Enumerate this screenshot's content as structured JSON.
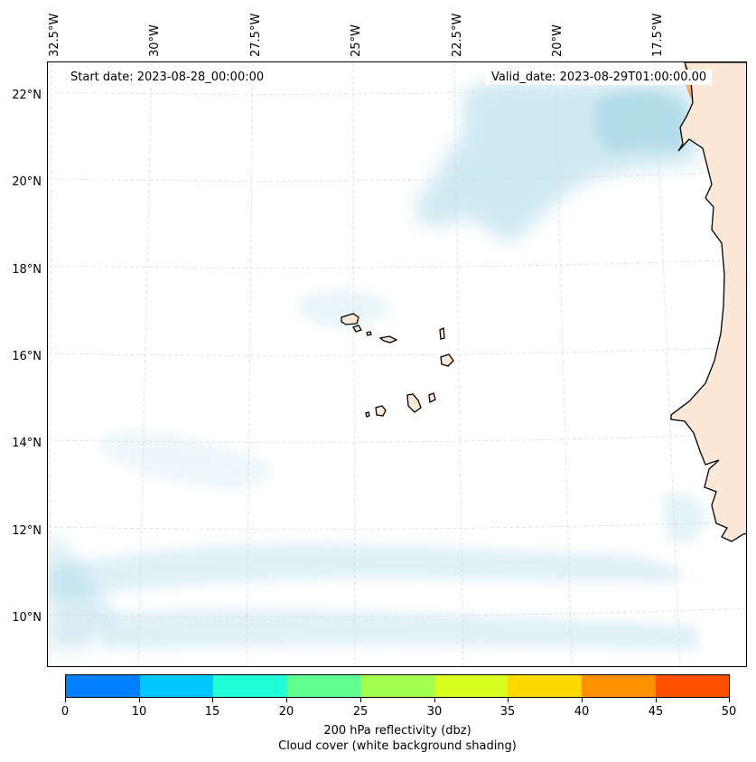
{
  "map": {
    "start_date": "Start date: 2023-08-28_00:00:00",
    "valid_date": "Valid_date: 2023-08-29T01:00:00.00",
    "lon_labels": [
      "32.5°W",
      "30°W",
      "27.5°W",
      "25°W",
      "22.5°W",
      "20°W",
      "17.5°W"
    ],
    "lat_labels": [
      "22°N",
      "20°N",
      "18°N",
      "16°N",
      "14°N",
      "12°N",
      "10°N"
    ],
    "colors": {
      "cloud": "#a8d8e6",
      "reflectivity_high": "#f5a66a",
      "reflectivity_low": "#fde4d0",
      "land_fill": "#fde8d8",
      "coast": "#000000",
      "grid": "#d6d6d6"
    }
  },
  "colorbar": {
    "ticks": [
      "0",
      "10",
      "15",
      "20",
      "25",
      "30",
      "35",
      "40",
      "45",
      "50"
    ],
    "colors": [
      "#0080ff",
      "#00c8ff",
      "#20ffd8",
      "#60ff90",
      "#a0ff50",
      "#d8ff20",
      "#ffd800",
      "#ff9000",
      "#ff5000"
    ],
    "label": "200 hPa reflectivity (dbz)",
    "sublabel": "Cloud cover (white background shading)"
  }
}
